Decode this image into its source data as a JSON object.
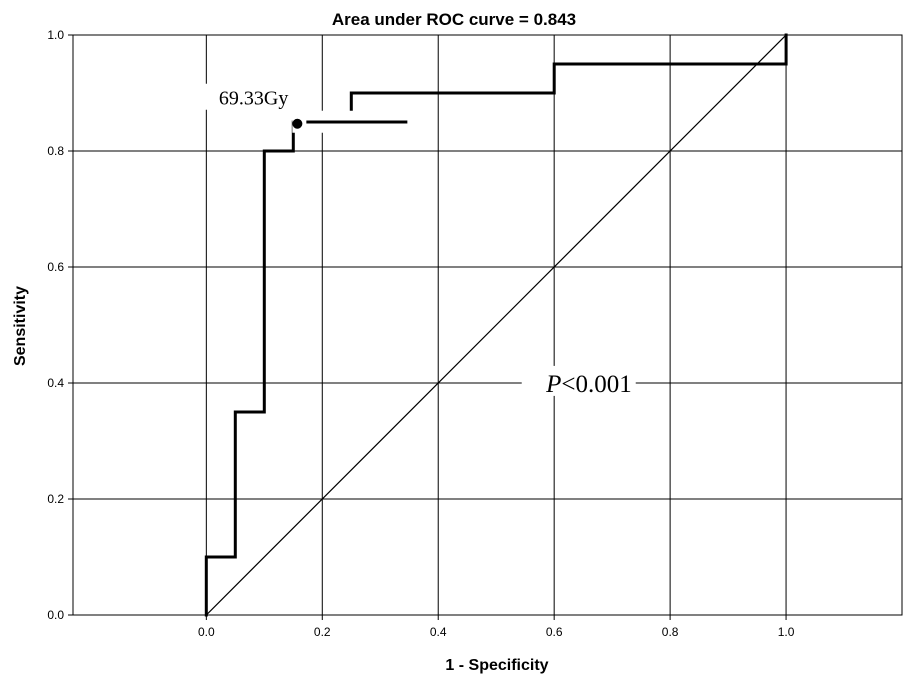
{
  "chart_data": {
    "type": "line",
    "title": "Area under ROC curve = 0.843",
    "xlabel": "1 - Specificity",
    "ylabel": "Sensitivity",
    "xlim": [
      -0.23,
      1.2
    ],
    "ylim": [
      0,
      1
    ],
    "x_ticks": [
      0.0,
      0.2,
      0.4,
      0.6,
      0.8,
      1.0
    ],
    "y_ticks": [
      0.0,
      0.2,
      0.4,
      0.6,
      0.8,
      1.0
    ],
    "x_tick_labels": [
      "0.0",
      "0.2",
      "0.4",
      "0.6",
      "0.8",
      "1.0"
    ],
    "y_tick_labels": [
      "0.0",
      "0.2",
      "0.4",
      "0.6",
      "0.8",
      "1.0"
    ],
    "grid": true,
    "legend": "none",
    "series": [
      {
        "role": "roc-curve",
        "x": [
          0.0,
          0.0,
          0.05,
          0.05,
          0.1,
          0.1,
          0.15,
          0.15,
          0.25,
          0.25,
          0.6,
          0.6,
          1.0,
          1.0
        ],
        "y": [
          0.0,
          0.1,
          0.1,
          0.35,
          0.35,
          0.8,
          0.8,
          0.85,
          0.85,
          0.9,
          0.9,
          0.95,
          0.95,
          1.0
        ]
      },
      {
        "role": "reference-line",
        "x": [
          0.0,
          1.0
        ],
        "y": [
          0.0,
          1.0
        ]
      }
    ],
    "cutoff_point": {
      "x": 0.157,
      "y": 0.847,
      "label": "69.33Gy"
    },
    "annotations": [
      {
        "text_italic": "P",
        "text": "<0.001",
        "x": 0.72,
        "y": 0.395
      }
    ]
  }
}
